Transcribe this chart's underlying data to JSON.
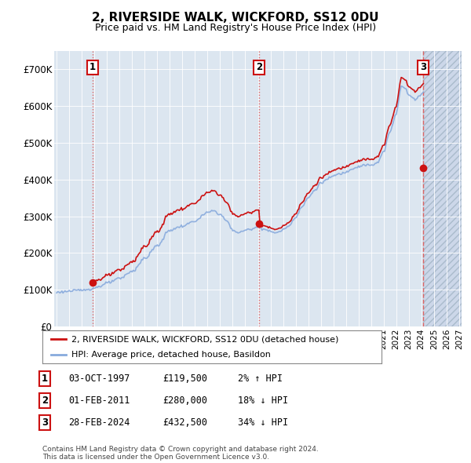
{
  "title": "2, RIVERSIDE WALK, WICKFORD, SS12 0DU",
  "subtitle": "Price paid vs. HM Land Registry's House Price Index (HPI)",
  "ylim": [
    0,
    750000
  ],
  "yticks": [
    0,
    100000,
    200000,
    300000,
    400000,
    500000,
    600000,
    700000
  ],
  "ytick_labels": [
    "£0",
    "£100K",
    "£200K",
    "£300K",
    "£400K",
    "£500K",
    "£600K",
    "£700K"
  ],
  "xmin": 1994.8,
  "xmax": 2027.2,
  "hpi_color": "#88aadd",
  "price_color": "#cc1111",
  "dashed_color": "#dd6666",
  "bg_color": "#dce6f0",
  "sale_points": [
    {
      "year": 1997.83,
      "price": 119500,
      "label": "1"
    },
    {
      "year": 2011.08,
      "price": 280000,
      "label": "2"
    },
    {
      "year": 2024.16,
      "price": 432500,
      "label": "3"
    }
  ],
  "legend_entries": [
    {
      "label": "2, RIVERSIDE WALK, WICKFORD, SS12 0DU (detached house)",
      "color": "#cc1111"
    },
    {
      "label": "HPI: Average price, detached house, Basildon",
      "color": "#88aadd"
    }
  ],
  "table_rows": [
    {
      "num": "1",
      "date": "03-OCT-1997",
      "price": "£119,500",
      "hpi": "2% ↑ HPI"
    },
    {
      "num": "2",
      "date": "01-FEB-2011",
      "price": "£280,000",
      "hpi": "18% ↓ HPI"
    },
    {
      "num": "3",
      "date": "28-FEB-2024",
      "price": "£432,500",
      "hpi": "34% ↓ HPI"
    }
  ],
  "footnote": "Contains HM Land Registry data © Crown copyright and database right 2024.\nThis data is licensed under the Open Government Licence v3.0."
}
